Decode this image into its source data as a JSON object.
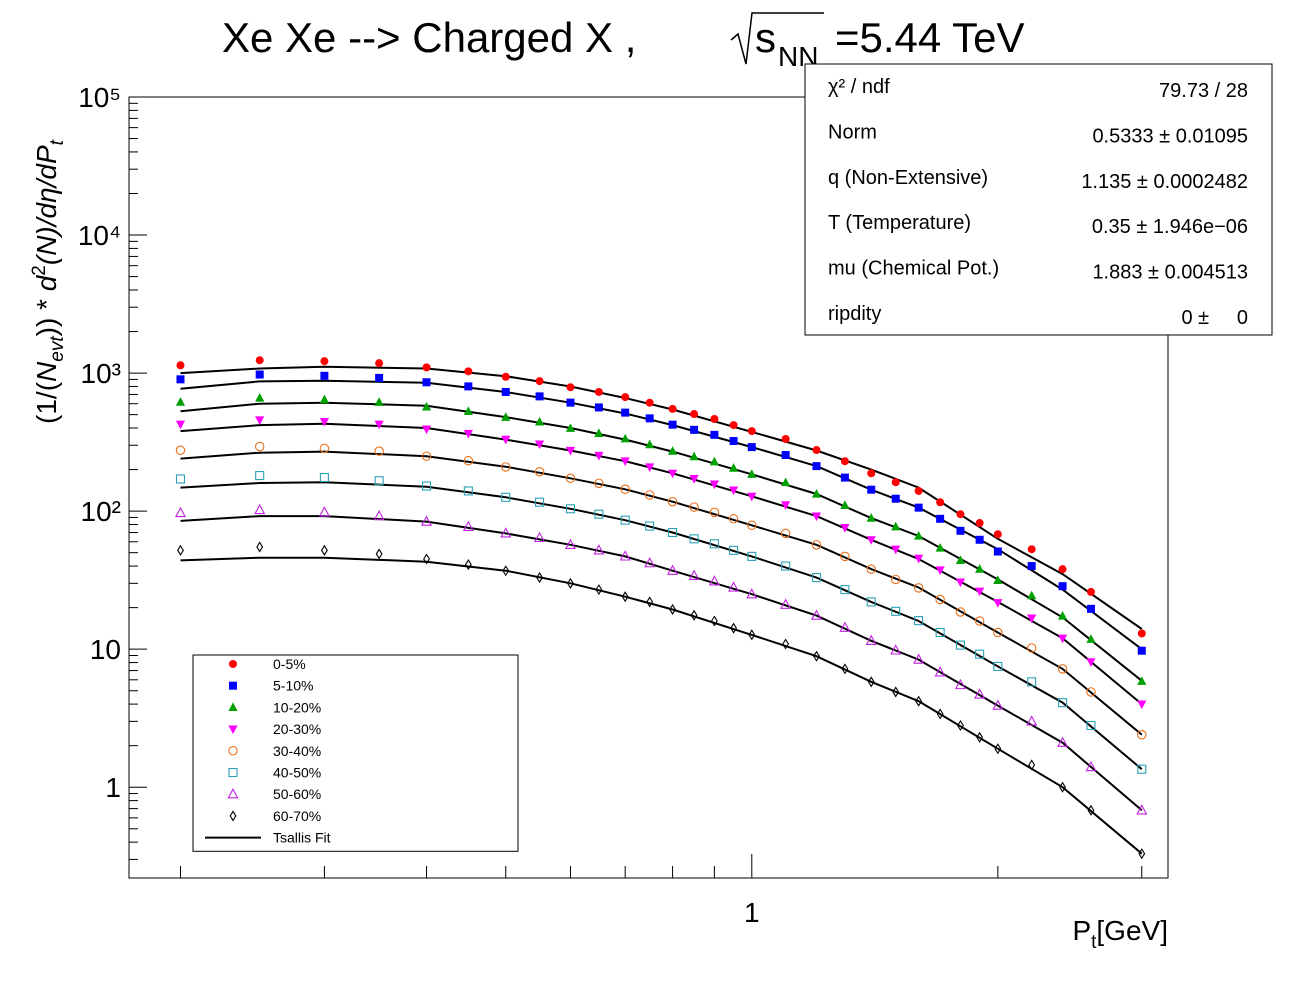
{
  "chart_data": {
    "type": "scatter",
    "title": "Xe Xe --> Charged X ,",
    "title_s": "s",
    "title_sub": "NN",
    "title_rest": "=5.44 TeV",
    "ylabel": [
      "(1/(",
      "N",
      "evt",
      ")) * ",
      "d",
      "2",
      "(N)/dη/dP",
      "t"
    ],
    "xlabel": [
      "P",
      "t",
      "[GeV]"
    ],
    "log_x": true,
    "log_y": true,
    "xlim": [
      0.173,
      3.23
    ],
    "ylim": [
      0.22,
      100000
    ],
    "xticks": [
      1
    ],
    "xminorticks": [
      0.2,
      0.3,
      0.4,
      0.5,
      0.6,
      0.7,
      0.8,
      0.9,
      2,
      3
    ],
    "yticks": [
      1,
      10,
      {
        "value": 100,
        "label": "10²"
      },
      {
        "value": 1000,
        "label": "10³"
      },
      {
        "value": 10000,
        "label": "10⁴"
      },
      {
        "value": 100000,
        "label": "10⁵"
      }
    ],
    "yminorticks": [
      0.3,
      0.4,
      0.5,
      0.6,
      0.7,
      0.8,
      0.9,
      2,
      3,
      4,
      5,
      6,
      7,
      8,
      9,
      20,
      30,
      40,
      50,
      60,
      70,
      80,
      90,
      200,
      300,
      400,
      500,
      600,
      700,
      800,
      900,
      2000,
      3000,
      4000,
      5000,
      6000,
      7000,
      8000,
      9000,
      20000,
      30000,
      40000,
      50000,
      60000,
      70000,
      80000,
      90000
    ],
    "x": [
      0.2,
      0.25,
      0.3,
      0.35,
      0.4,
      0.45,
      0.5,
      0.55,
      0.6,
      0.65,
      0.7,
      0.75,
      0.8,
      0.85,
      0.9,
      0.95,
      1.0,
      1.1,
      1.2,
      1.3,
      1.4,
      1.5,
      1.6,
      1.7,
      1.8,
      1.9,
      2.0,
      2.2,
      2.4,
      2.6,
      3.0
    ],
    "fit_x": [
      0.2,
      0.25,
      0.3,
      0.4,
      0.5,
      0.6,
      0.7,
      0.8,
      1.0,
      1.2,
      1.4,
      1.6,
      2.0,
      2.4,
      3.0
    ],
    "fit_name": "Tsallis Fit",
    "fit_color": "#000000",
    "series": [
      {
        "name": "0-5%",
        "color": "#ff0000",
        "marker": "circle",
        "filled": true,
        "values": [
          1140,
          1240,
          1220,
          1180,
          1100,
          1030,
          940,
          875,
          790,
          730,
          670,
          610,
          550,
          505,
          465,
          420,
          380,
          333,
          277,
          230,
          188,
          162,
          140,
          116,
          95,
          82,
          68,
          53,
          38,
          26,
          13
        ],
        "fit": [
          1000,
          1080,
          1110,
          1080,
          950,
          800,
          660,
          545,
          375,
          275,
          200,
          148,
          63,
          35,
          14
        ]
      },
      {
        "name": "5-10%",
        "color": "#0000ff",
        "marker": "square",
        "filled": true,
        "values": [
          901,
          976,
          956,
          923,
          858,
          801,
          730,
          678,
          611,
          564,
          517,
          470,
          423,
          388,
          357,
          322,
          291,
          255,
          212,
          175,
          143,
          123,
          106,
          88,
          72,
          62,
          51,
          40,
          28.6,
          19.6,
          9.75
        ],
        "fit": [
          770,
          870,
          880,
          850,
          730,
          610,
          510,
          420,
          291,
          212,
          143,
          106,
          53,
          27,
          10
        ]
      },
      {
        "name": "10-20%",
        "color": "#00a000",
        "marker": "triangle-up",
        "filled": true,
        "values": [
          616,
          660,
          642,
          615,
          569,
          528,
          479,
          443,
          398,
          366,
          334,
          303,
          272,
          248,
          228,
          205,
          185,
          161,
          133,
          110,
          89,
          77,
          66,
          54,
          44,
          38,
          31.5,
          24.4,
          17.4,
          11.8,
          5.85
        ],
        "fit": [
          530,
          600,
          610,
          580,
          480,
          400,
          330,
          270,
          185,
          133,
          89,
          66,
          32,
          17,
          5.9
        ]
      },
      {
        "name": "20-30%",
        "color": "#ff00ff",
        "marker": "triangle-down",
        "filled": true,
        "values": [
          426,
          457,
          445,
          426,
          393,
          365,
          331,
          306,
          275,
          253,
          231,
          209,
          188,
          172,
          157,
          142,
          128,
          111,
          92,
          76,
          62,
          53,
          45.5,
          37.5,
          30.6,
          26.3,
          21.7,
          16.8,
          12,
          8.1,
          4.0
        ],
        "fit": [
          380,
          420,
          430,
          400,
          330,
          275,
          230,
          188,
          128,
          92,
          62,
          45,
          22,
          12,
          4.0
        ]
      },
      {
        "name": "30-40%",
        "color": "#e8701a",
        "marker": "circle",
        "filled": false,
        "values": [
          276,
          294,
          285,
          272,
          250,
          232,
          209,
          193,
          173,
          159,
          144,
          131,
          117,
          107,
          98,
          88,
          79,
          69,
          57,
          47,
          38,
          32,
          27.8,
          22.9,
          18.6,
          16,
          13.2,
          10.2,
          7.2,
          4.9,
          2.4
        ],
        "fit": [
          240,
          265,
          270,
          250,
          210,
          173,
          144,
          117,
          79,
          57,
          38,
          28,
          13.2,
          7.2,
          2.4
        ]
      },
      {
        "name": "40-50%",
        "color": "#2aa0b4",
        "marker": "square",
        "filled": false,
        "values": [
          171,
          181,
          175,
          166,
          152,
          140,
          126,
          116,
          104,
          95,
          86,
          78,
          70,
          63,
          58,
          52,
          47,
          40,
          33,
          27,
          22,
          18.8,
          16.1,
          13.2,
          10.7,
          9.2,
          7.5,
          5.8,
          4.1,
          2.8,
          1.35
        ],
        "fit": [
          148,
          160,
          162,
          150,
          126,
          104,
          86,
          70,
          47,
          33,
          22,
          16,
          7.5,
          4.1,
          1.35
        ]
      },
      {
        "name": "50-60%",
        "color": "#c020e0",
        "marker": "triangle-up",
        "filled": false,
        "values": [
          97,
          102,
          98,
          92,
          84,
          77,
          69,
          64,
          57,
          52,
          47,
          42,
          37,
          34,
          31,
          28,
          25,
          21,
          17.5,
          14.3,
          11.5,
          9.8,
          8.4,
          6.8,
          5.5,
          4.7,
          3.9,
          3.0,
          2.1,
          1.4,
          0.68
        ],
        "fit": [
          85,
          92,
          92,
          84,
          69,
          57,
          47,
          37,
          25,
          17.5,
          11.5,
          8.4,
          3.9,
          2.1,
          0.68
        ]
      },
      {
        "name": "60-70%",
        "color": "#000000",
        "marker": "diamond",
        "filled": false,
        "values": [
          52,
          55,
          52,
          49,
          45,
          41,
          37,
          33,
          30,
          27,
          24,
          22,
          19.4,
          17.6,
          16,
          14.2,
          12.7,
          10.9,
          8.9,
          7.2,
          5.8,
          4.9,
          4.2,
          3.4,
          2.8,
          2.3,
          1.9,
          1.45,
          1.0,
          0.68,
          0.33
        ],
        "fit": [
          44,
          46,
          46,
          43,
          37,
          30,
          24,
          19.4,
          12.7,
          8.9,
          5.8,
          4.2,
          1.9,
          1.0,
          0.33
        ]
      }
    ],
    "stats": [
      {
        "label": "χ² / ndf",
        "value": "79.73 / 28"
      },
      {
        "label": "Norm",
        "value": "0.5333 ± 0.01095"
      },
      {
        "label": "q (Non-Extensive)",
        "value": "1.135 ± 0.0002482"
      },
      {
        "label": "T (Temperature)",
        "value": "0.35 ± 1.946e−06"
      },
      {
        "label": "mu (Chemical Pot.)",
        "value": "1.883 ± 0.004513"
      },
      {
        "label": "ripdity",
        "value": "0 ±     0"
      }
    ]
  }
}
